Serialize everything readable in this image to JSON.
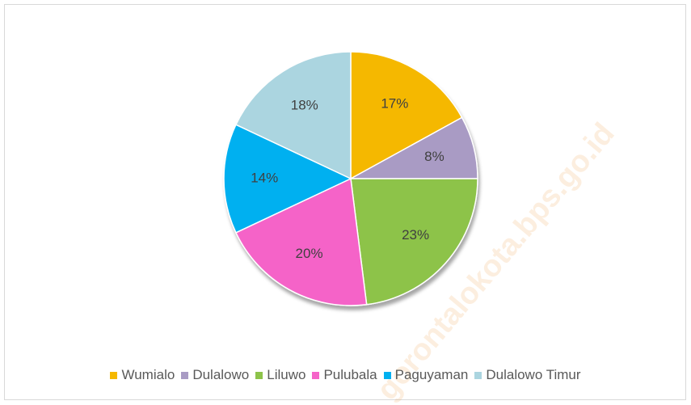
{
  "chart_data": {
    "type": "pie",
    "categories": [
      "Wumialo",
      "Dulalowo",
      "Liluwo",
      "Pulubala",
      "Paguyaman",
      "Dulalowo Timur"
    ],
    "values": [
      17,
      8,
      23,
      20,
      14,
      18
    ],
    "value_labels": [
      "17%",
      "8%",
      "23%",
      "20%",
      "14%",
      "18%"
    ],
    "colors": [
      "#f5b800",
      "#a99bc4",
      "#8dc34a",
      "#f564c8",
      "#00b0f0",
      "#abd5e0"
    ],
    "legend": "bottom",
    "watermark": "gorontalokota.bps.go.id"
  }
}
